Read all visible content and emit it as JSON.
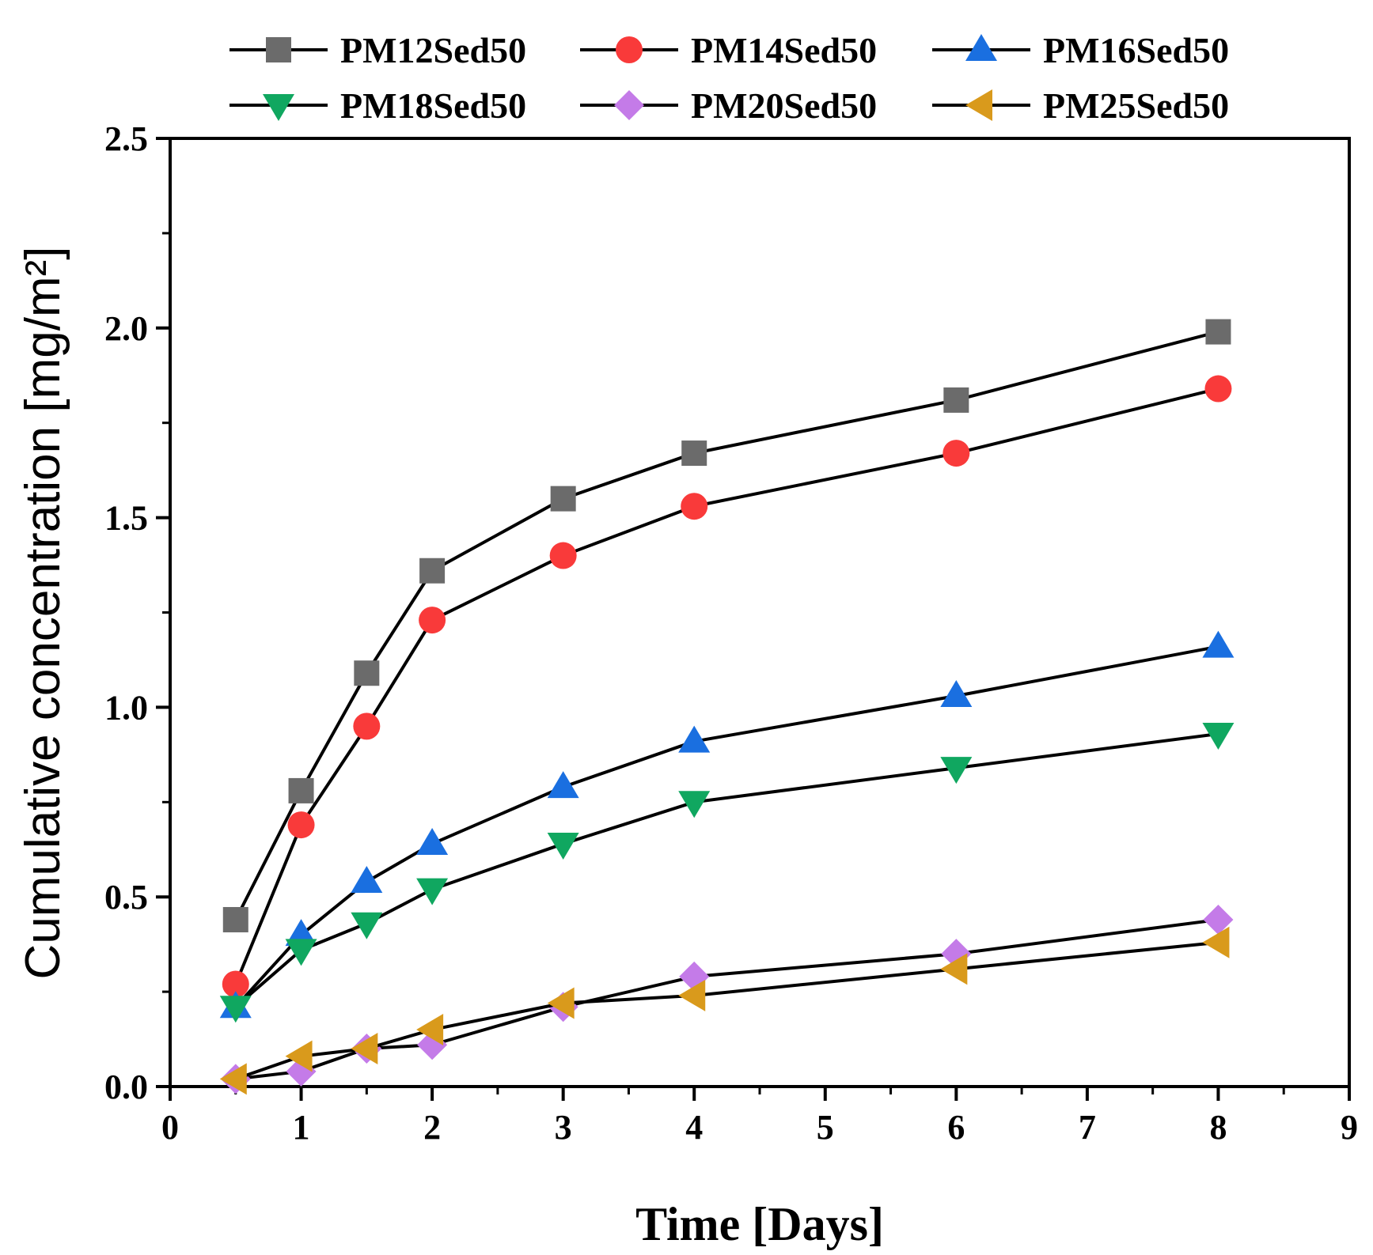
{
  "chart_data": {
    "type": "line",
    "title": "",
    "xlabel": "Time [Days]",
    "ylabel": "Cumulative concentration [mg/m²]",
    "xlim": [
      0,
      9
    ],
    "ylim": [
      0,
      2.5
    ],
    "xticks": [
      "0",
      "1",
      "2",
      "3",
      "4",
      "5",
      "6",
      "7",
      "8",
      "9"
    ],
    "yticks": [
      "0.0",
      "0.5",
      "1.0",
      "1.5",
      "2.0",
      "2.5"
    ],
    "grid": false,
    "legend_position": "top",
    "x": [
      0.5,
      1,
      1.5,
      2,
      3,
      4,
      6,
      8
    ],
    "series": [
      {
        "name": "PM12Sed50",
        "color": "#6b6b6b",
        "marker": "square",
        "values": [
          0.44,
          0.78,
          1.09,
          1.36,
          1.55,
          1.67,
          1.81,
          1.99
        ]
      },
      {
        "name": "PM14Sed50",
        "color": "#f93a3a",
        "marker": "circle",
        "values": [
          0.27,
          0.69,
          0.95,
          1.23,
          1.4,
          1.53,
          1.67,
          1.84
        ]
      },
      {
        "name": "PM16Sed50",
        "color": "#1a6fe0",
        "marker": "triangle-up",
        "values": [
          0.21,
          0.4,
          0.54,
          0.64,
          0.79,
          0.91,
          1.03,
          1.16
        ]
      },
      {
        "name": "PM18Sed50",
        "color": "#10a760",
        "marker": "triangle-down",
        "values": [
          0.21,
          0.36,
          0.43,
          0.52,
          0.64,
          0.75,
          0.84,
          0.93
        ]
      },
      {
        "name": "PM20Sed50",
        "color": "#c47be8",
        "marker": "diamond",
        "values": [
          0.02,
          0.04,
          0.1,
          0.11,
          0.21,
          0.29,
          0.35,
          0.44
        ]
      },
      {
        "name": "PM25Sed50",
        "color": "#d99a1c",
        "marker": "triangle-left",
        "values": [
          0.02,
          0.08,
          0.1,
          0.15,
          0.22,
          0.24,
          0.31,
          0.38
        ]
      }
    ]
  }
}
